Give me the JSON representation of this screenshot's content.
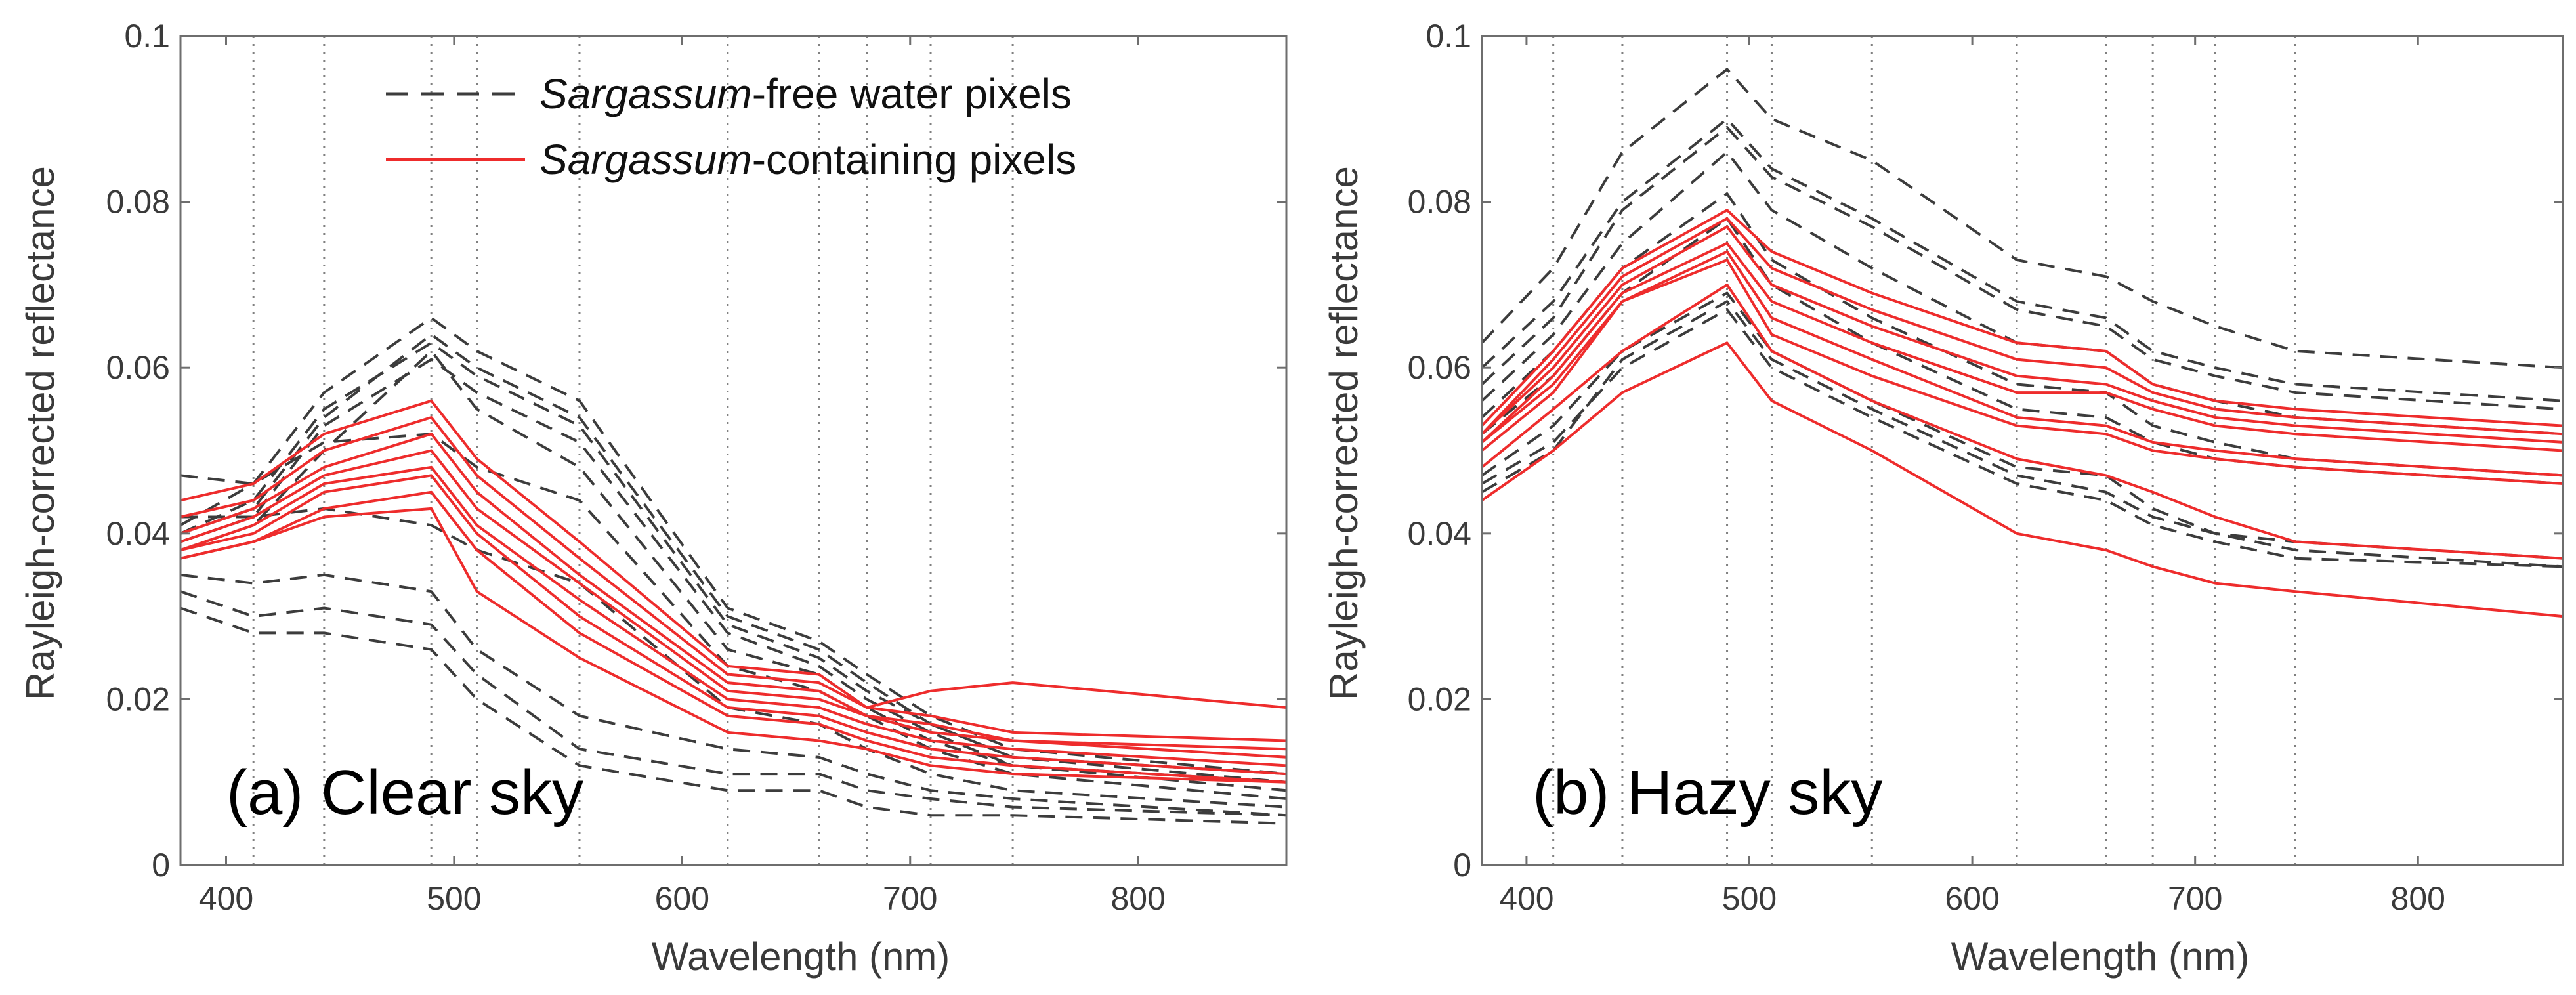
{
  "figure": {
    "legend": {
      "free": {
        "italic": "Sargassum",
        "rest": "-free water pixels"
      },
      "containing": {
        "italic": "Sargassum",
        "rest": "-containing pixels"
      }
    },
    "colors": {
      "free": "#3c3c3c",
      "containing": "#ee2c2c",
      "axis": "#6e6e6e",
      "guide": "#808080"
    }
  },
  "chart_data": [
    {
      "type": "line",
      "title": "(a) Clear sky",
      "xlabel": "Wavelength (nm)",
      "ylabel": "Rayleigh-corrected reflectance",
      "xlim": [
        380,
        865
      ],
      "ylim": [
        0,
        0.1
      ],
      "xticks": [
        400,
        500,
        600,
        700,
        800
      ],
      "yticks": [
        0,
        0.02,
        0.04,
        0.06,
        0.08,
        0.1
      ],
      "ytick_labels": [
        "0",
        "0.02",
        "0.04",
        "0.06",
        "0.08",
        "0.1"
      ],
      "band_guides_nm": [
        412,
        443,
        490,
        510,
        555,
        620,
        660,
        681,
        709,
        745
      ],
      "x": [
        380,
        412,
        443,
        490,
        510,
        555,
        620,
        660,
        681,
        709,
        745,
        865
      ],
      "series_free": [
        [
          0.041,
          0.046,
          0.057,
          0.066,
          0.062,
          0.056,
          0.031,
          0.027,
          0.023,
          0.018,
          0.014,
          0.011
        ],
        [
          0.04,
          0.044,
          0.055,
          0.063,
          0.059,
          0.053,
          0.029,
          0.025,
          0.021,
          0.017,
          0.013,
          0.01
        ],
        [
          0.039,
          0.042,
          0.053,
          0.061,
          0.057,
          0.051,
          0.028,
          0.024,
          0.02,
          0.016,
          0.012,
          0.01
        ],
        [
          0.038,
          0.041,
          0.05,
          0.062,
          0.055,
          0.048,
          0.026,
          0.023,
          0.019,
          0.015,
          0.012,
          0.009
        ],
        [
          0.047,
          0.046,
          0.051,
          0.052,
          0.048,
          0.044,
          0.024,
          0.021,
          0.018,
          0.014,
          0.011,
          0.008
        ],
        [
          0.042,
          0.042,
          0.043,
          0.041,
          0.038,
          0.034,
          0.019,
          0.017,
          0.014,
          0.011,
          0.009,
          0.007
        ],
        [
          0.035,
          0.034,
          0.035,
          0.033,
          0.026,
          0.018,
          0.014,
          0.013,
          0.011,
          0.009,
          0.008,
          0.006
        ],
        [
          0.033,
          0.03,
          0.031,
          0.029,
          0.023,
          0.014,
          0.011,
          0.011,
          0.009,
          0.008,
          0.007,
          0.006
        ],
        [
          0.031,
          0.028,
          0.028,
          0.026,
          0.02,
          0.012,
          0.009,
          0.009,
          0.007,
          0.006,
          0.006,
          0.005
        ],
        [
          0.04,
          0.043,
          0.054,
          0.064,
          0.06,
          0.054,
          0.03,
          0.026,
          0.022,
          0.017,
          0.013,
          0.011
        ]
      ],
      "series_containing": [
        [
          0.044,
          0.046,
          0.052,
          0.056,
          0.049,
          0.039,
          0.024,
          0.023,
          0.019,
          0.021,
          0.022,
          0.019
        ],
        [
          0.042,
          0.044,
          0.05,
          0.054,
          0.047,
          0.037,
          0.023,
          0.022,
          0.019,
          0.018,
          0.016,
          0.015
        ],
        [
          0.04,
          0.043,
          0.048,
          0.052,
          0.045,
          0.035,
          0.022,
          0.021,
          0.018,
          0.017,
          0.015,
          0.014
        ],
        [
          0.039,
          0.042,
          0.047,
          0.05,
          0.043,
          0.034,
          0.021,
          0.02,
          0.018,
          0.016,
          0.015,
          0.013
        ],
        [
          0.038,
          0.041,
          0.046,
          0.048,
          0.041,
          0.032,
          0.02,
          0.019,
          0.017,
          0.015,
          0.014,
          0.012
        ],
        [
          0.038,
          0.04,
          0.045,
          0.047,
          0.04,
          0.03,
          0.019,
          0.018,
          0.016,
          0.014,
          0.013,
          0.011
        ],
        [
          0.037,
          0.039,
          0.043,
          0.045,
          0.038,
          0.028,
          0.018,
          0.017,
          0.015,
          0.013,
          0.012,
          0.01
        ],
        [
          0.037,
          0.039,
          0.042,
          0.043,
          0.033,
          0.025,
          0.016,
          0.015,
          0.014,
          0.012,
          0.011,
          0.01
        ]
      ]
    },
    {
      "type": "line",
      "title": "(b) Hazy sky",
      "xlabel": "Wavelength (nm)",
      "ylabel": "Rayleigh-corrected reflectance",
      "xlim": [
        380,
        865
      ],
      "ylim": [
        0,
        0.1
      ],
      "xticks": [
        400,
        500,
        600,
        700,
        800
      ],
      "yticks": [
        0,
        0.02,
        0.04,
        0.06,
        0.08,
        0.1
      ],
      "ytick_labels": [
        "0",
        "0.02",
        "0.04",
        "0.06",
        "0.08",
        "0.1"
      ],
      "band_guides_nm": [
        412,
        443,
        490,
        510,
        555,
        620,
        660,
        681,
        709,
        745
      ],
      "x": [
        380,
        412,
        443,
        490,
        510,
        555,
        620,
        660,
        681,
        709,
        745,
        865
      ],
      "series_free": [
        [
          0.063,
          0.072,
          0.086,
          0.096,
          0.09,
          0.085,
          0.073,
          0.071,
          0.068,
          0.065,
          0.062,
          0.06
        ],
        [
          0.06,
          0.068,
          0.08,
          0.09,
          0.084,
          0.078,
          0.068,
          0.066,
          0.062,
          0.06,
          0.058,
          0.056
        ],
        [
          0.058,
          0.066,
          0.079,
          0.089,
          0.083,
          0.077,
          0.067,
          0.065,
          0.061,
          0.059,
          0.057,
          0.055
        ],
        [
          0.056,
          0.064,
          0.075,
          0.086,
          0.079,
          0.072,
          0.063,
          0.062,
          0.058,
          0.056,
          0.054,
          0.052
        ],
        [
          0.054,
          0.062,
          0.072,
          0.081,
          0.073,
          0.066,
          0.058,
          0.057,
          0.053,
          0.051,
          0.049,
          0.047
        ],
        [
          0.052,
          0.059,
          0.069,
          0.078,
          0.07,
          0.063,
          0.055,
          0.054,
          0.051,
          0.049,
          0.048,
          0.046
        ],
        [
          0.047,
          0.053,
          0.062,
          0.069,
          0.062,
          0.056,
          0.048,
          0.047,
          0.043,
          0.04,
          0.039,
          0.037
        ],
        [
          0.046,
          0.051,
          0.06,
          0.067,
          0.06,
          0.054,
          0.046,
          0.044,
          0.041,
          0.039,
          0.037,
          0.036
        ],
        [
          0.045,
          0.05,
          0.061,
          0.068,
          0.061,
          0.055,
          0.047,
          0.045,
          0.042,
          0.04,
          0.038,
          0.036
        ]
      ],
      "series_containing": [
        [
          0.053,
          0.062,
          0.072,
          0.079,
          0.074,
          0.069,
          0.063,
          0.062,
          0.058,
          0.056,
          0.055,
          0.053
        ],
        [
          0.052,
          0.061,
          0.071,
          0.078,
          0.072,
          0.067,
          0.061,
          0.06,
          0.057,
          0.055,
          0.054,
          0.052
        ],
        [
          0.052,
          0.06,
          0.07,
          0.077,
          0.07,
          0.065,
          0.059,
          0.058,
          0.056,
          0.054,
          0.053,
          0.051
        ],
        [
          0.051,
          0.059,
          0.069,
          0.075,
          0.068,
          0.063,
          0.057,
          0.057,
          0.055,
          0.053,
          0.052,
          0.05
        ],
        [
          0.051,
          0.058,
          0.068,
          0.074,
          0.066,
          0.061,
          0.054,
          0.053,
          0.051,
          0.05,
          0.049,
          0.047
        ],
        [
          0.05,
          0.057,
          0.068,
          0.073,
          0.064,
          0.059,
          0.053,
          0.052,
          0.05,
          0.049,
          0.048,
          0.046
        ],
        [
          0.048,
          0.055,
          0.062,
          0.07,
          0.062,
          0.056,
          0.049,
          0.047,
          0.045,
          0.042,
          0.039,
          0.037
        ],
        [
          0.044,
          0.05,
          0.057,
          0.063,
          0.056,
          0.05,
          0.04,
          0.038,
          0.036,
          0.034,
          0.033,
          0.03
        ]
      ]
    }
  ]
}
